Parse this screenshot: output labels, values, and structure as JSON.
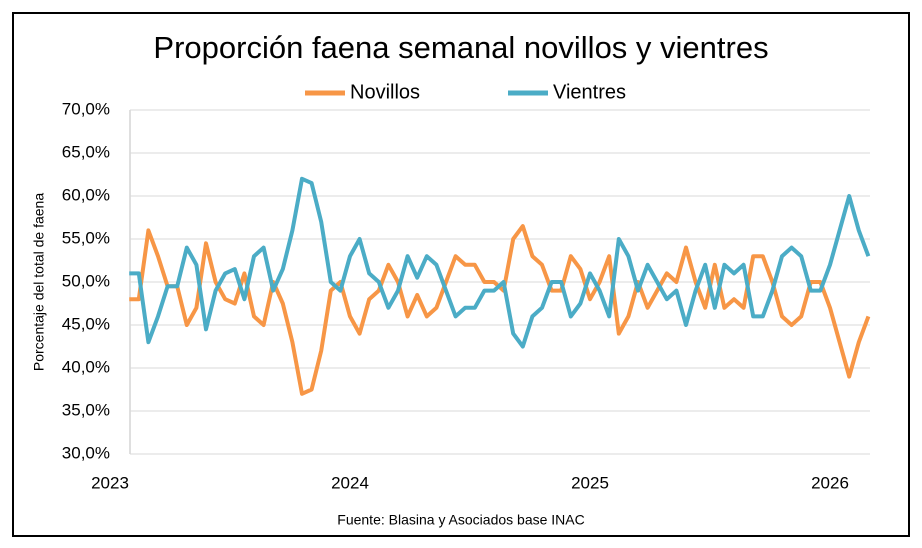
{
  "chart_data": {
    "type": "line",
    "title": "Proporción faena semanal novillos y vientres",
    "y_label": "Porcentaje del total de faena",
    "source": "Fuente: Blasina y Asociados base INAC",
    "x": [
      2023.08,
      2023.12,
      2023.16,
      2023.2,
      2023.24,
      2023.28,
      2023.32,
      2023.36,
      2023.4,
      2023.44,
      2023.48,
      2023.52,
      2023.56,
      2023.6,
      2023.64,
      2023.68,
      2023.72,
      2023.76,
      2023.8,
      2023.84,
      2023.88,
      2023.92,
      2023.96,
      2024.0,
      2024.04,
      2024.08,
      2024.12,
      2024.16,
      2024.2,
      2024.24,
      2024.28,
      2024.32,
      2024.36,
      2024.4,
      2024.44,
      2024.48,
      2024.52,
      2024.56,
      2024.6,
      2024.64,
      2024.68,
      2024.72,
      2024.76,
      2024.8,
      2024.84,
      2024.88,
      2024.92,
      2024.96,
      2025.0,
      2025.04,
      2025.08,
      2025.12,
      2025.16,
      2025.2,
      2025.24,
      2025.28,
      2025.32,
      2025.36,
      2025.4,
      2025.44,
      2025.48,
      2025.52,
      2025.56,
      2025.6,
      2025.64,
      2025.68,
      2025.72,
      2025.76,
      2025.8,
      2025.84,
      2025.88,
      2025.92,
      2025.96,
      2026.0,
      2026.04,
      2026.08,
      2026.12,
      2026.16
    ],
    "series": [
      {
        "name": "Novillos",
        "color": "#f79646",
        "values": [
          48,
          48,
          56,
          53,
          49.5,
          49.5,
          45,
          47,
          54.5,
          50,
          48,
          47.5,
          51,
          46,
          45,
          50,
          47.5,
          43,
          37,
          37.5,
          42,
          49,
          50,
          46,
          44,
          48,
          49,
          52,
          50,
          46,
          48.5,
          46,
          47,
          50,
          53,
          52,
          52,
          50,
          50,
          49,
          55,
          56.5,
          53,
          52,
          49,
          49,
          53,
          51.5,
          48,
          50,
          53,
          44,
          46,
          50,
          47,
          49,
          51,
          50,
          54,
          50,
          47,
          52,
          47,
          48,
          47,
          53,
          53,
          50,
          46,
          45,
          46,
          50,
          50,
          47,
          43,
          39,
          43,
          46
        ]
      },
      {
        "name": "Vientres",
        "color": "#4bacc6",
        "values": [
          51,
          51,
          43,
          46,
          49.5,
          49.5,
          54,
          52,
          44.5,
          49,
          51,
          51.5,
          48,
          53,
          54,
          49,
          51.5,
          56,
          62,
          61.5,
          57,
          50,
          49,
          53,
          55,
          51,
          50,
          47,
          49,
          53,
          50.5,
          53,
          52,
          49,
          46,
          47,
          47,
          49,
          49,
          50,
          44,
          42.5,
          46,
          47,
          50,
          50,
          46,
          47.5,
          51,
          49,
          46,
          55,
          53,
          49,
          52,
          50,
          48,
          49,
          45,
          49,
          52,
          47,
          52,
          51,
          52,
          46,
          46,
          49,
          53,
          54,
          53,
          49,
          49,
          52,
          56,
          60,
          56,
          53
        ]
      }
    ],
    "xlim": [
      2023,
      2026.2
    ],
    "xticks": [
      2023,
      2024,
      2025,
      2026
    ],
    "ylim": [
      30,
      70
    ],
    "yticks": [
      {
        "value": 30,
        "label": "30,0%"
      },
      {
        "value": 35,
        "label": "35,0%"
      },
      {
        "value": 40,
        "label": "40,0%"
      },
      {
        "value": 45,
        "label": "45,0%"
      },
      {
        "value": 50,
        "label": "50,0%"
      },
      {
        "value": 55,
        "label": "55,0%"
      },
      {
        "value": 60,
        "label": "60,0%"
      },
      {
        "value": 65,
        "label": "65,0%"
      },
      {
        "value": 70,
        "label": "70,0%"
      }
    ],
    "grid": true,
    "legend": "top"
  }
}
